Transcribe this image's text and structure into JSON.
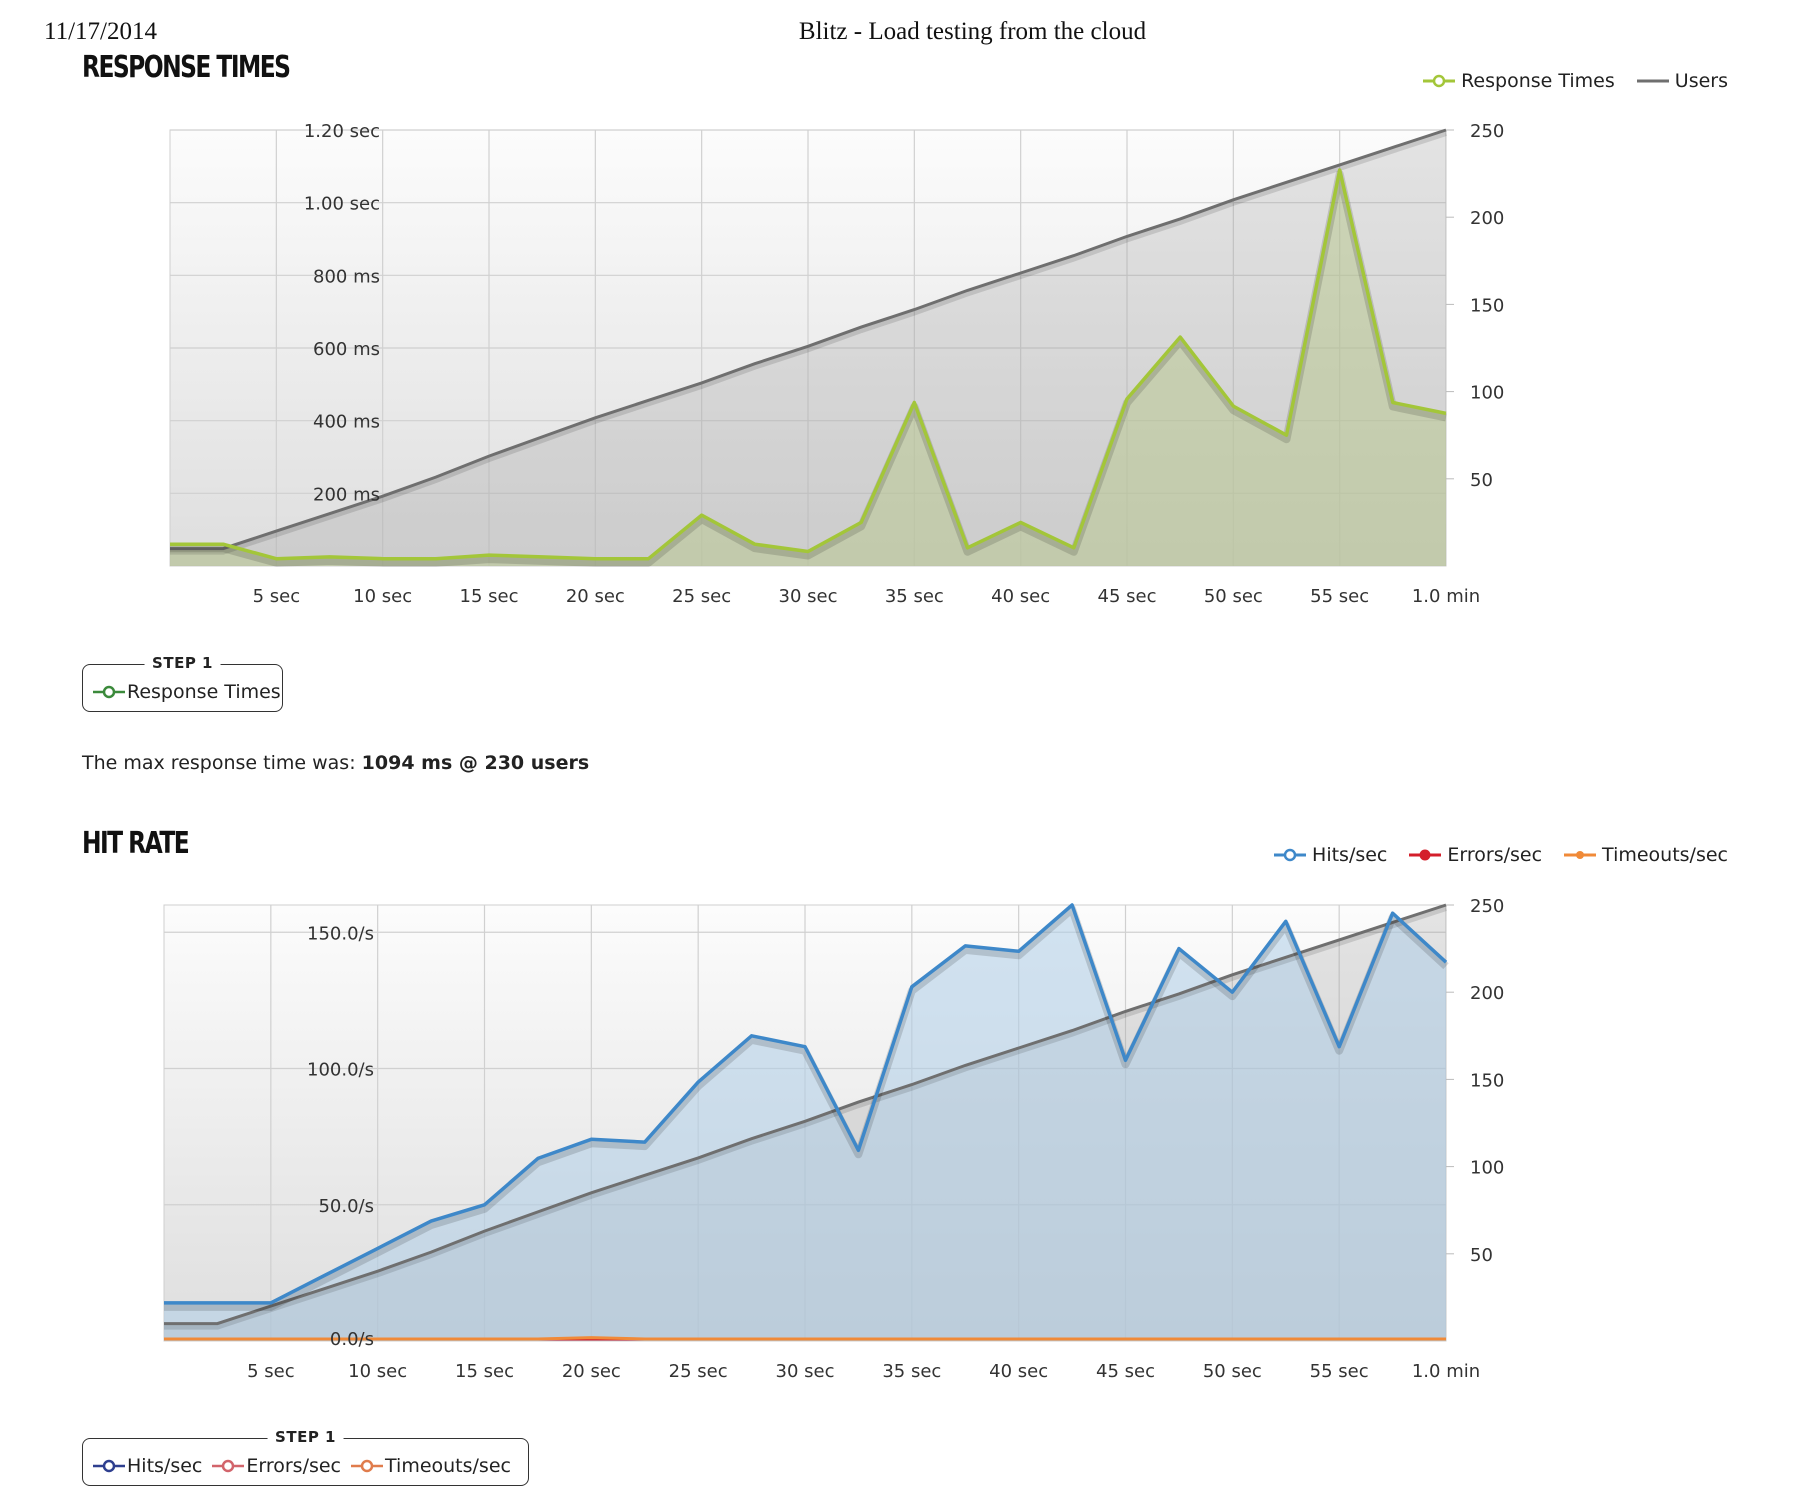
{
  "print_header": {
    "date": "11/17/2014",
    "title": "Blitz - Load testing from the cloud"
  },
  "colors": {
    "response": "#a3c639",
    "users": "#6f6f6f",
    "hits": "#3e88c9",
    "errors": "#d41f2b",
    "timeouts": "#f08a38",
    "step_response": "#3b8a3b",
    "step_hits": "#2e3f8f",
    "step_errors": "#d2646b",
    "step_timeouts": "#e07c4c"
  },
  "response_section": {
    "title": "RESPONSE TIMES",
    "legend": [
      {
        "label": "Response Times",
        "icon": "line-circle-icon"
      },
      {
        "label": "Users",
        "icon": "line-icon"
      }
    ],
    "step": {
      "label": "STEP 1",
      "items": [
        "Response Times"
      ]
    },
    "summary": {
      "prefix": "The max response time was:",
      "value": "1094 ms @ 230 users"
    }
  },
  "hit_section": {
    "title": "HIT RATE",
    "legend": [
      {
        "label": "Hits/sec",
        "icon": "line-circle-icon"
      },
      {
        "label": "Errors/sec",
        "icon": "line-dot-icon"
      },
      {
        "label": "Timeouts/sec",
        "icon": "line-dot-icon"
      }
    ],
    "step": {
      "label": "STEP 1",
      "items": [
        "Hits/sec",
        "Errors/sec",
        "Timeouts/sec"
      ]
    }
  },
  "chart_data": [
    {
      "type": "area",
      "title": "RESPONSE TIMES",
      "x_ticks": [
        "5 sec",
        "10 sec",
        "15 sec",
        "20 sec",
        "25 sec",
        "30 sec",
        "35 sec",
        "40 sec",
        "45 sec",
        "50 sec",
        "55 sec",
        "1.0 min"
      ],
      "xlim": [
        0,
        60
      ],
      "y_left_ticks": [
        "200 ms",
        "400 ms",
        "600 ms",
        "800 ms",
        "1.00 sec",
        "1.20 sec"
      ],
      "y_left_tick_values": [
        200,
        400,
        600,
        800,
        1000,
        1200
      ],
      "y_left_lim": [
        0,
        1200
      ],
      "y_right_ticks": [
        "50",
        "100",
        "150",
        "200",
        "250"
      ],
      "y_right_tick_values": [
        50,
        100,
        150,
        200,
        250
      ],
      "y_right_lim": [
        0,
        250
      ],
      "grid": true,
      "legend_position": "top-right",
      "series": [
        {
          "name": "Response Times",
          "axis": "left",
          "x": [
            0,
            2.5,
            5,
            7.5,
            10,
            12.5,
            15,
            17.5,
            20,
            22.5,
            25,
            27.5,
            30,
            32.5,
            35,
            37.5,
            40,
            42.5,
            45,
            47.5,
            50,
            52.5,
            55,
            57.5,
            60
          ],
          "values": [
            60,
            60,
            20,
            25,
            20,
            20,
            30,
            25,
            20,
            20,
            140,
            60,
            40,
            120,
            450,
            50,
            120,
            50,
            460,
            630,
            440,
            360,
            1090,
            450,
            420
          ]
        },
        {
          "name": "Users",
          "axis": "right",
          "x": [
            0,
            2.5,
            5,
            7.5,
            10,
            12.5,
            15,
            17.5,
            20,
            22.5,
            25,
            27.5,
            30,
            32.5,
            35,
            37.5,
            40,
            42.5,
            45,
            47.5,
            50,
            52.5,
            55,
            57.5,
            60
          ],
          "values": [
            10,
            10,
            20,
            30,
            40,
            51,
            63,
            74,
            85,
            95,
            105,
            116,
            126,
            137,
            147,
            158,
            168,
            178,
            189,
            199,
            210,
            220,
            230,
            240,
            250
          ]
        }
      ]
    },
    {
      "type": "area",
      "title": "HIT RATE",
      "x_ticks": [
        "5 sec",
        "10 sec",
        "15 sec",
        "20 sec",
        "25 sec",
        "30 sec",
        "35 sec",
        "40 sec",
        "45 sec",
        "50 sec",
        "55 sec",
        "1.0 min"
      ],
      "xlim": [
        0,
        60
      ],
      "y_left_ticks": [
        "0.0/s",
        "50.0/s",
        "100.0/s",
        "150.0/s"
      ],
      "y_left_tick_values": [
        0,
        50,
        100,
        150
      ],
      "y_left_lim": [
        0,
        160
      ],
      "y_right_ticks": [
        "50",
        "100",
        "150",
        "200",
        "250"
      ],
      "y_right_tick_values": [
        50,
        100,
        150,
        200,
        250
      ],
      "y_right_lim": [
        0,
        250
      ],
      "grid": true,
      "legend_position": "top-right",
      "series": [
        {
          "name": "Hits/sec",
          "axis": "left",
          "x": [
            0,
            2.5,
            5,
            7.5,
            10,
            12.5,
            15,
            17.5,
            20,
            22.5,
            25,
            27.5,
            30,
            32.5,
            35,
            37.5,
            40,
            42.5,
            45,
            47.5,
            50,
            52.5,
            55,
            57.5,
            60
          ],
          "values": [
            14,
            14,
            14,
            24,
            34,
            44,
            50,
            67,
            74,
            73,
            95,
            112,
            108,
            70,
            130,
            145,
            143,
            160,
            103,
            144,
            128,
            154,
            108,
            157,
            139
          ]
        },
        {
          "name": "Errors/sec",
          "axis": "left",
          "x": [
            0,
            60
          ],
          "values": [
            0,
            0
          ]
        },
        {
          "name": "Timeouts/sec",
          "axis": "left",
          "x": [
            0,
            17.5,
            20,
            22.5,
            60
          ],
          "values": [
            0,
            0,
            0.5,
            0,
            0
          ]
        },
        {
          "name": "Users",
          "axis": "right",
          "x": [
            0,
            2.5,
            5,
            7.5,
            10,
            12.5,
            15,
            17.5,
            20,
            22.5,
            25,
            27.5,
            30,
            32.5,
            35,
            37.5,
            40,
            42.5,
            45,
            47.5,
            50,
            52.5,
            55,
            57.5,
            60
          ],
          "values": [
            10,
            10,
            20,
            30,
            40,
            51,
            63,
            74,
            85,
            95,
            105,
            116,
            126,
            137,
            147,
            158,
            168,
            178,
            189,
            199,
            210,
            220,
            230,
            240,
            250
          ]
        }
      ]
    }
  ]
}
